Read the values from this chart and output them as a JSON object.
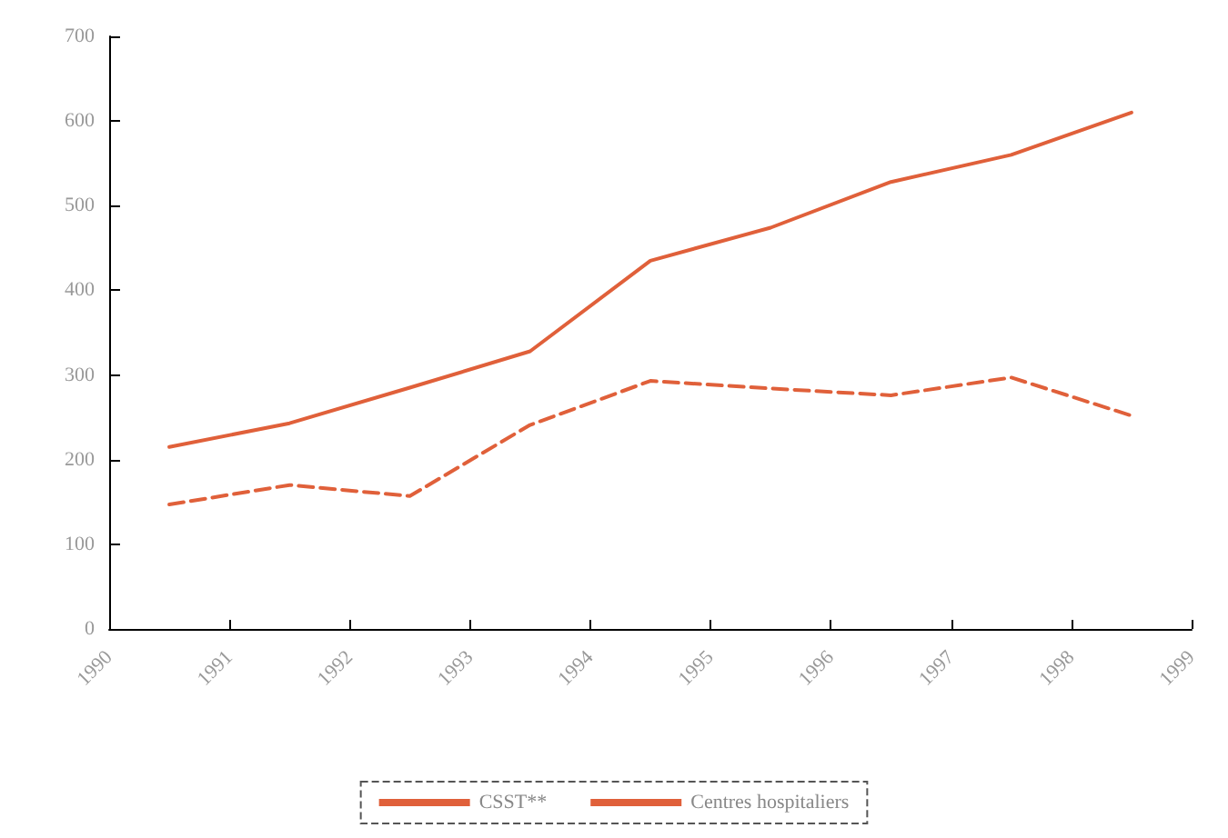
{
  "chart_data": {
    "type": "line",
    "x": [
      1990.5,
      1991.5,
      1992.5,
      1993.5,
      1994.5,
      1995.5,
      1996.5,
      1997.5,
      1998.5
    ],
    "series": [
      {
        "name": "CSST**",
        "color": "#e0603a",
        "values": [
          215,
          243,
          285,
          328,
          435,
          474,
          528,
          560,
          610
        ]
      },
      {
        "name": "Centres hospitaliers",
        "color": "#e0603a",
        "line_style": "dashed",
        "values": [
          147,
          170,
          157,
          241,
          293,
          284,
          276,
          297,
          252
        ]
      }
    ],
    "xlim": [
      1990,
      1999
    ],
    "xticks": [
      1990,
      1991,
      1992,
      1993,
      1994,
      1995,
      1996,
      1997,
      1998,
      1999
    ],
    "ylim": [
      0,
      700
    ],
    "yticks": [
      0,
      100,
      200,
      300,
      400,
      500,
      600,
      700
    ],
    "grid": false,
    "legend": "bottom",
    "marker": "none",
    "line_style": "solid"
  }
}
